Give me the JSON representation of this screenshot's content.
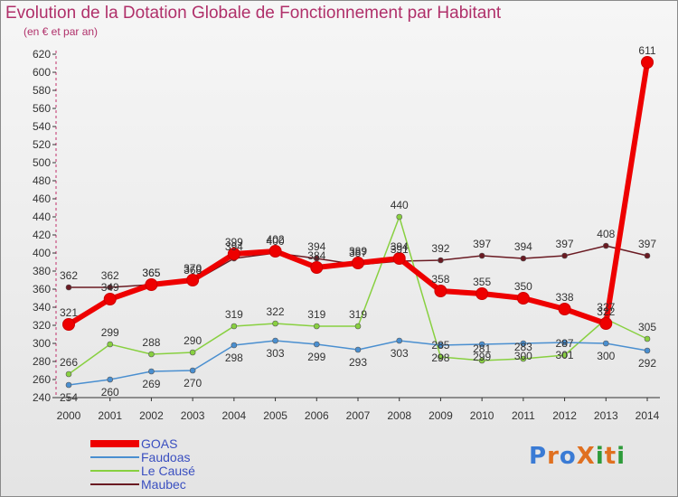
{
  "title": "Evolution de la Dotation Globale de Fonctionnement par Habitant",
  "subtitle": "(en € et par an)",
  "logo": {
    "text": "ProXiti",
    "colors": [
      "#3a7bd5",
      "#e07020",
      "#3a7bd5",
      "#e07020",
      "#2e9b3a",
      "#e07020",
      "#2e9b3a"
    ]
  },
  "chart_data": {
    "type": "line",
    "x": [
      "2000",
      "2001",
      "2002",
      "2003",
      "2004",
      "2005",
      "2006",
      "2007",
      "2008",
      "2009",
      "2010",
      "2011",
      "2012",
      "2013",
      "2014"
    ],
    "ylim": [
      240,
      620
    ],
    "yticks": [
      240,
      260,
      280,
      300,
      320,
      340,
      360,
      380,
      400,
      420,
      440,
      460,
      480,
      500,
      520,
      540,
      560,
      580,
      600,
      620
    ],
    "grid": false,
    "legend_position": "bottom-left",
    "series": [
      {
        "name": "GOAS",
        "color": "#ee0000",
        "values": [
          321,
          349,
          365,
          370,
          399,
          402,
          384,
          389,
          394,
          358,
          355,
          350,
          338,
          322,
          611
        ],
        "labels": [
          "321",
          "349",
          "365",
          "370",
          "399",
          "402",
          "384",
          "389",
          "394",
          "358",
          "355",
          "350",
          "338",
          "322",
          "611"
        ]
      },
      {
        "name": "Faudoas",
        "color": "#4a8fd0",
        "values": [
          254,
          260,
          269,
          270,
          298,
          303,
          299,
          293,
          303,
          298,
          299,
          300,
          301,
          300,
          292
        ],
        "labels": [
          "254",
          "260",
          "269",
          "270",
          "298",
          "303",
          "299",
          "293",
          "303",
          "298",
          "299",
          "300",
          "301",
          "300",
          "292"
        ]
      },
      {
        "name": "Le Causé",
        "color": "#88d040",
        "values": [
          266,
          299,
          288,
          290,
          319,
          322,
          319,
          319,
          440,
          285,
          281,
          283,
          287,
          327,
          305
        ],
        "labels": [
          "266",
          "299",
          "288",
          "290",
          "319",
          "322",
          "319",
          "319",
          "440",
          "285",
          "281",
          "283",
          "287",
          "327",
          "305"
        ]
      },
      {
        "name": "Maubec",
        "color": "#6a1a22",
        "values": [
          362,
          362,
          365,
          368,
          394,
          400,
          394,
          387,
          391,
          392,
          397,
          394,
          397,
          408,
          397
        ],
        "labels": [
          "362",
          "362",
          "365",
          "368",
          "394",
          "400",
          "394",
          "387",
          "391",
          "392",
          "397",
          "394",
          "397",
          "408",
          "397"
        ]
      }
    ]
  }
}
